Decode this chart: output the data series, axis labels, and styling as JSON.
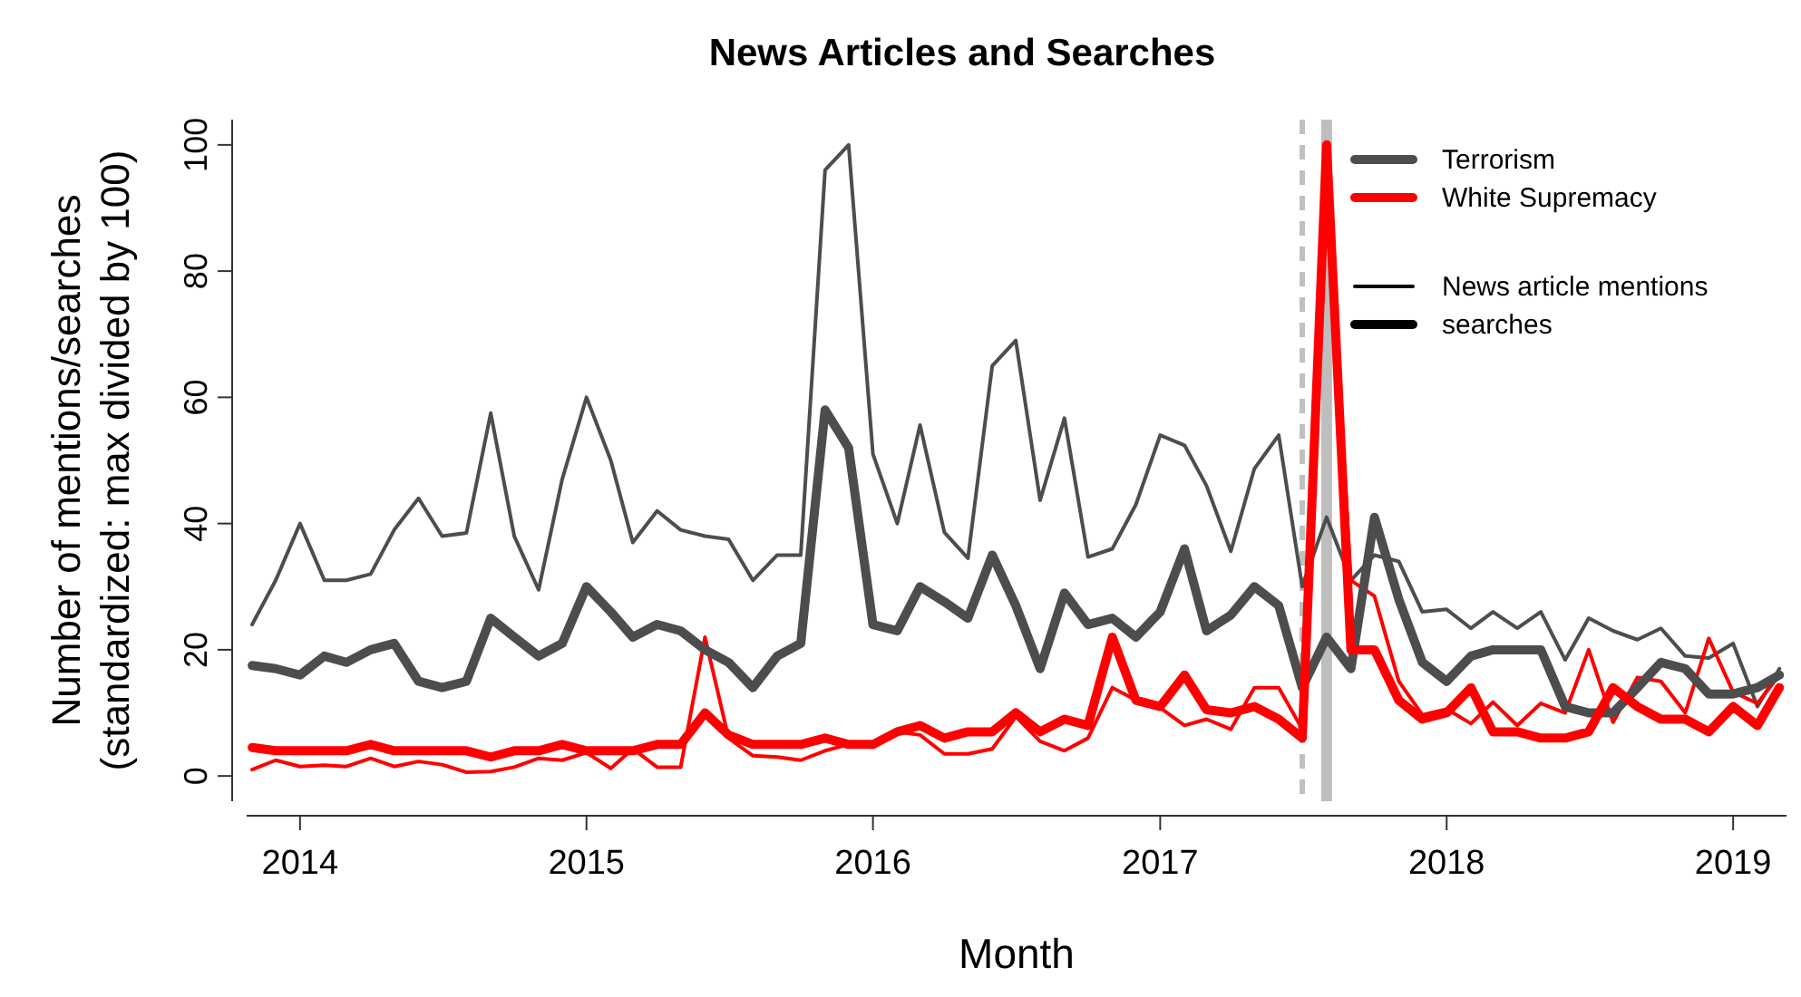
{
  "chart_data": {
    "type": "line",
    "title": "News Articles and Searches",
    "xlabel": "Month",
    "ylabel": "Number of mentions/searches\n(standardized: max divided by 100)",
    "x": [
      "2013-11",
      "2013-12",
      "2014-01",
      "2014-02",
      "2014-03",
      "2014-04",
      "2014-05",
      "2014-06",
      "2014-07",
      "2014-08",
      "2014-09",
      "2014-10",
      "2014-11",
      "2014-12",
      "2015-01",
      "2015-02",
      "2015-03",
      "2015-04",
      "2015-05",
      "2015-06",
      "2015-07",
      "2015-08",
      "2015-09",
      "2015-10",
      "2015-11",
      "2015-12",
      "2016-01",
      "2016-02",
      "2016-03",
      "2016-04",
      "2016-05",
      "2016-06",
      "2016-07",
      "2016-08",
      "2016-09",
      "2016-10",
      "2016-11",
      "2016-12",
      "2017-01",
      "2017-02",
      "2017-03",
      "2017-04",
      "2017-05",
      "2017-06",
      "2017-07",
      "2017-08",
      "2017-09",
      "2017-10",
      "2017-11",
      "2017-12",
      "2018-01",
      "2018-02",
      "2018-03",
      "2018-04",
      "2018-05",
      "2018-06",
      "2018-07",
      "2018-08",
      "2018-09",
      "2018-10",
      "2018-11",
      "2018-12",
      "2019-01",
      "2019-02",
      "2019-03"
    ],
    "series": [
      {
        "color": "#4d4d4d",
        "values": [
          24,
          31,
          40,
          31,
          31,
          32,
          39,
          44,
          38,
          38.5,
          57.5,
          38,
          29.5,
          47,
          60,
          50,
          37,
          42,
          39,
          38,
          37.5,
          31,
          35,
          35,
          96,
          100,
          51,
          40,
          55.6,
          38.6,
          34.5,
          65,
          69,
          43.7,
          56.7,
          34.7,
          36,
          43,
          54,
          52.4,
          46,
          35.6,
          48.7,
          54,
          30,
          41,
          31,
          35,
          34,
          26,
          26.4,
          23.4,
          26,
          23.4,
          26,
          18.4,
          25,
          23,
          21.6,
          23.4,
          19,
          18.7,
          21,
          11,
          17
        ]
      },
      {
        "color": "#ff0000",
        "values": [
          1,
          2.5,
          1.5,
          1.7,
          1.5,
          2.8,
          1.5,
          2.3,
          1.8,
          0.6,
          0.7,
          1.4,
          2.8,
          2.5,
          3.7,
          1.2,
          4.3,
          1.4,
          1.4,
          22,
          6,
          3.2,
          3,
          2.5,
          4,
          5,
          5,
          7,
          6.5,
          3.5,
          3.5,
          4.3,
          9.4,
          5.5,
          4,
          6,
          14,
          12,
          10.8,
          8,
          9,
          7.4,
          14,
          14,
          7.4,
          97,
          31,
          28.5,
          15,
          9.7,
          10.6,
          8.3,
          11.7,
          8,
          11.5,
          10,
          20,
          8.5,
          15.6,
          15,
          10,
          21.8,
          13.3,
          11.5,
          16
        ]
      },
      {
        "name": "Terrorism",
        "color": "#4d4d4d",
        "values": [
          17.5,
          17,
          16,
          19,
          18,
          20,
          21,
          15,
          14,
          15,
          25,
          22,
          19,
          21,
          30,
          26,
          22,
          24,
          23,
          20,
          18,
          14,
          19,
          21,
          58,
          52,
          24,
          23,
          30,
          27.6,
          25,
          35,
          27,
          17,
          29,
          24,
          25,
          22,
          26,
          36,
          23,
          25.5,
          30,
          27,
          14,
          22,
          17,
          41,
          28,
          18,
          15,
          19,
          20,
          20,
          20,
          11,
          10,
          10,
          14,
          18,
          17,
          13,
          13,
          14,
          16
        ]
      },
      {
        "name": "White Supremacy",
        "color": "#ff0000",
        "values": [
          4.5,
          4,
          4,
          4,
          4,
          5,
          4,
          4,
          4,
          4,
          3,
          4,
          4,
          5,
          4,
          4,
          4,
          5,
          5,
          10,
          6.5,
          5,
          5,
          5,
          6,
          5,
          5,
          7,
          8,
          6,
          7,
          7,
          10,
          7,
          9,
          8,
          22,
          12,
          11,
          16,
          10.5,
          10,
          11,
          9,
          6,
          100,
          20,
          20,
          12,
          9,
          10,
          14,
          7,
          7,
          6,
          6,
          7,
          14,
          11,
          9,
          9,
          7,
          11,
          8,
          14
        ]
      }
    ],
    "annotations": [
      "News article mentions",
      "searches"
    ],
    "xlim": [
      "2013-10-25",
      "2019-03-10"
    ],
    "xticks": [
      {
        "value": "2014-01",
        "label": "2014"
      },
      {
        "value": "2015-01",
        "label": "2015"
      },
      {
        "value": "2016-01",
        "label": "2016"
      },
      {
        "value": "2017-01",
        "label": "2017"
      },
      {
        "value": "2018-01",
        "label": "2018"
      },
      {
        "value": "2019-01",
        "label": "2019"
      }
    ],
    "ylim": [
      -4,
      104
    ],
    "yticks": [
      0,
      20,
      40,
      60,
      80,
      100
    ],
    "ref_lines": [
      {
        "axis": "x",
        "value": "2017-07",
        "color": "#c0c0c0",
        "line_style": "dashed"
      },
      {
        "axis": "x",
        "value": "2017-08",
        "color": "#bebebe",
        "line_style": "solid"
      }
    ],
    "grid": false,
    "legend": "top right"
  }
}
